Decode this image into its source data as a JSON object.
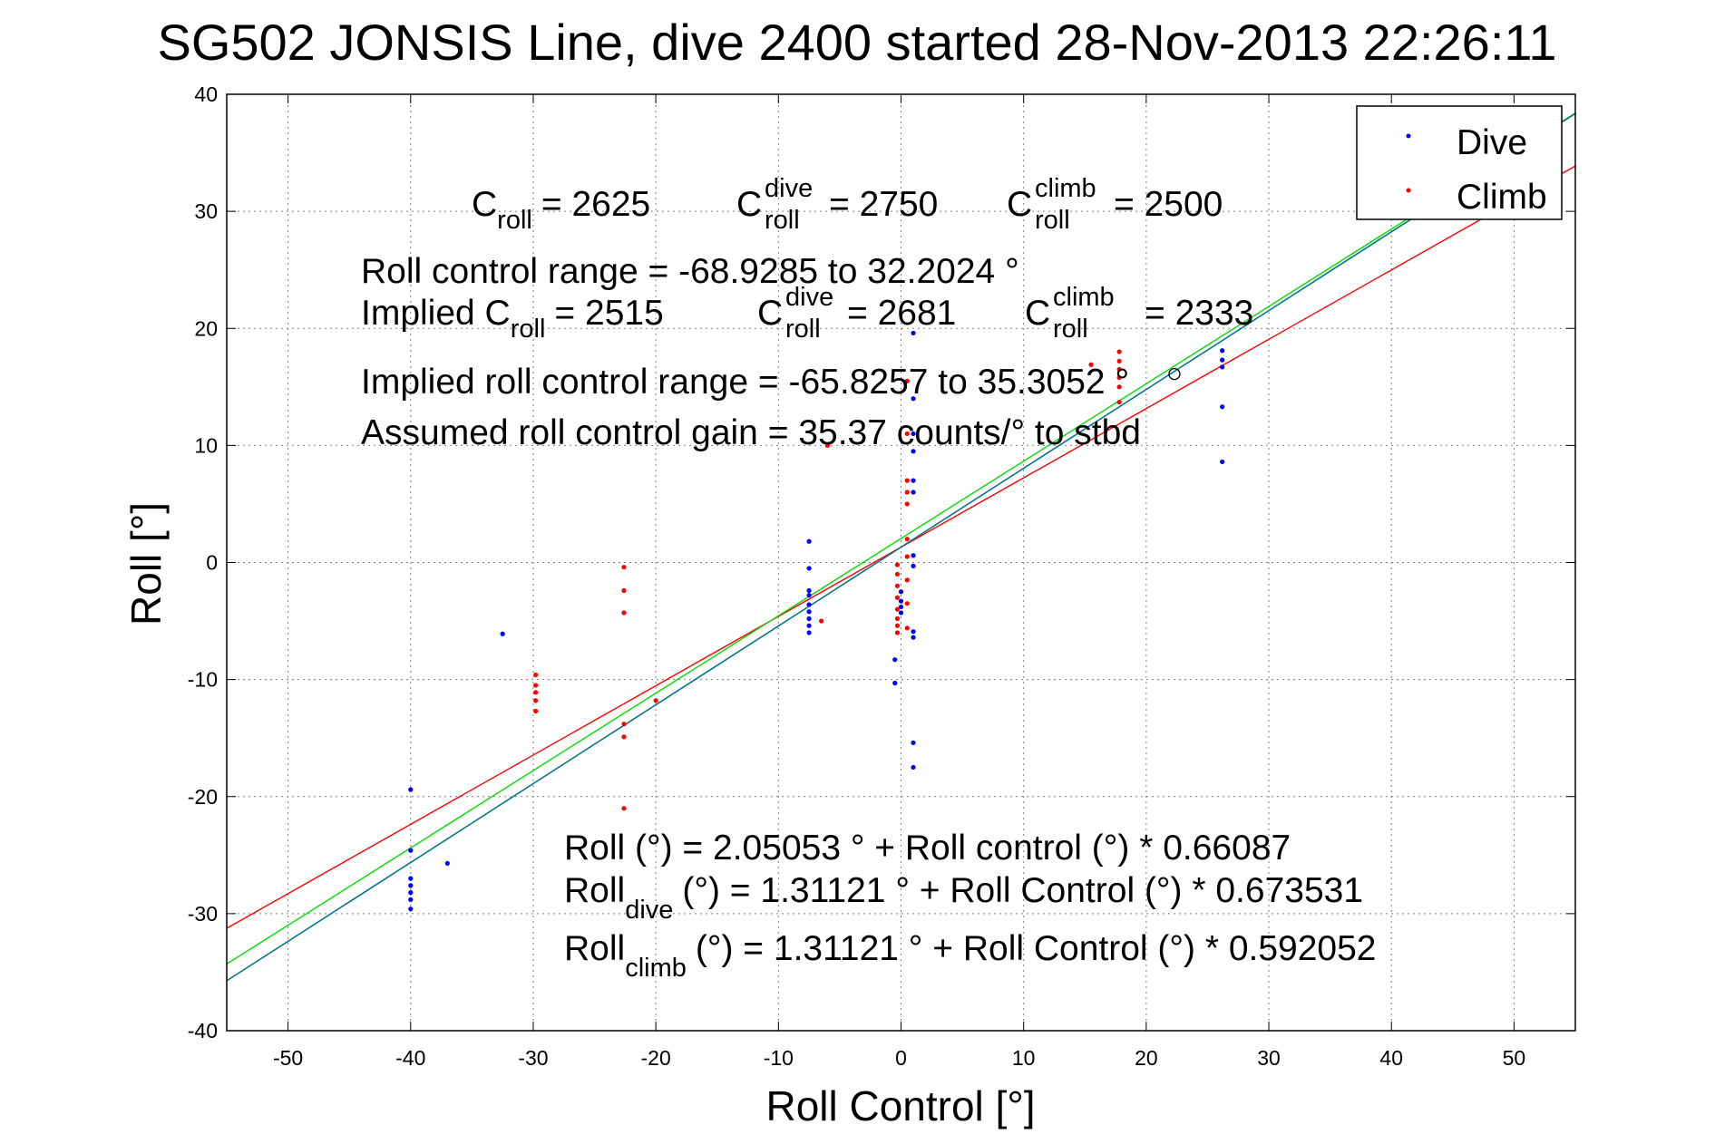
{
  "chart_data": {
    "type": "scatter",
    "title": "SG502 JONSIS Line, dive 2400 started 28-Nov-2013 22:26:11",
    "xlabel": "Roll Control [°]",
    "ylabel": "Roll [°]",
    "xlim": [
      -55,
      55
    ],
    "ylim": [
      -40,
      40
    ],
    "x_ticks": [
      "-50",
      "-40",
      "-30",
      "-20",
      "-10",
      "0",
      "10",
      "20",
      "30",
      "40",
      "50"
    ],
    "y_ticks": [
      "40",
      "30",
      "20",
      "10",
      "0",
      "-10",
      "-20",
      "-30",
      "-40"
    ],
    "grid": true,
    "legend_position": "top-right",
    "series": [
      {
        "name": "Dive",
        "color": "#0000ff",
        "points": [
          [
            -40,
            -19.4
          ],
          [
            -40,
            -24.6
          ],
          [
            -40,
            -27.0
          ],
          [
            -40,
            -27.6
          ],
          [
            -40,
            -28.2
          ],
          [
            -40,
            -28.8
          ],
          [
            -40,
            -29.6
          ],
          [
            -37,
            -25.7
          ],
          [
            -32.5,
            -6.1
          ],
          [
            -7.5,
            1.8
          ],
          [
            -7.5,
            -0.5
          ],
          [
            -7.5,
            -2.4
          ],
          [
            -7.5,
            -2.8
          ],
          [
            -7.5,
            -3.6
          ],
          [
            -7.5,
            -4.2
          ],
          [
            -7.5,
            -4.8
          ],
          [
            -7.5,
            -5.4
          ],
          [
            -7.5,
            -6.0
          ],
          [
            -0.5,
            -8.3
          ],
          [
            -0.5,
            -10.3
          ],
          [
            0,
            -2.5
          ],
          [
            0,
            -3.3
          ],
          [
            0,
            -3.8
          ],
          [
            0,
            -4.3
          ],
          [
            1,
            19.6
          ],
          [
            1,
            14.0
          ],
          [
            1,
            11.0
          ],
          [
            1,
            9.5
          ],
          [
            1,
            7.0
          ],
          [
            1,
            6.0
          ],
          [
            1,
            0.6
          ],
          [
            1,
            -0.3
          ],
          [
            1,
            -5.9
          ],
          [
            1,
            -6.4
          ],
          [
            1,
            -15.4
          ],
          [
            1,
            -17.5
          ],
          [
            26.2,
            18.1
          ],
          [
            26.2,
            17.3
          ],
          [
            26.2,
            16.7
          ],
          [
            26.2,
            13.3
          ],
          [
            26.2,
            8.6
          ]
        ]
      },
      {
        "name": "Climb",
        "color": "#ff0000",
        "points": [
          [
            -29.8,
            -9.6
          ],
          [
            -29.8,
            -10.5
          ],
          [
            -29.8,
            -11.1
          ],
          [
            -29.8,
            -11.8
          ],
          [
            -29.8,
            -12.7
          ],
          [
            -22.6,
            -0.4
          ],
          [
            -22.6,
            -2.4
          ],
          [
            -22.6,
            -4.3
          ],
          [
            -22.6,
            -13.8
          ],
          [
            -22.6,
            -14.9
          ],
          [
            -22.6,
            -21.0
          ],
          [
            -20,
            -11.8
          ],
          [
            -6.5,
            -5.0
          ],
          [
            -0.3,
            -0.2
          ],
          [
            -0.3,
            -1.0
          ],
          [
            -0.3,
            -2.0
          ],
          [
            -0.3,
            -3.0
          ],
          [
            -0.3,
            -4.0
          ],
          [
            -0.3,
            -4.8
          ],
          [
            -0.3,
            -5.4
          ],
          [
            -0.3,
            -6.0
          ],
          [
            0.5,
            15.5
          ],
          [
            0.5,
            11.0
          ],
          [
            0.5,
            7.0
          ],
          [
            0.5,
            6.0
          ],
          [
            0.5,
            5.0
          ],
          [
            0.5,
            2.0
          ],
          [
            0.5,
            0.5
          ],
          [
            0.5,
            -1.5
          ],
          [
            0.5,
            -3.5
          ],
          [
            0.5,
            -5.6
          ],
          [
            -6,
            10.0
          ],
          [
            15.5,
            16.9
          ],
          [
            17.8,
            18.0
          ],
          [
            17.8,
            17.2
          ],
          [
            17.8,
            16.5
          ],
          [
            17.8,
            15.8
          ],
          [
            17.8,
            15.0
          ],
          [
            17.8,
            13.7
          ]
        ]
      }
    ],
    "fit_lines": [
      {
        "color": "#0000ff",
        "intercept": 1.31121,
        "slope": 0.673531
      },
      {
        "color": "#ff0000",
        "intercept": 1.31121,
        "slope": 0.592052
      },
      {
        "color": "#00dd00",
        "intercept": 2.05053,
        "slope": 0.66087
      },
      {
        "color": "#008080",
        "intercept": 1.31121,
        "slope": 0.673531
      }
    ],
    "marker_circle": [
      22.3,
      16.1
    ],
    "annotations": {
      "c_roll": "C",
      "c_roll_sub": "roll",
      "c_roll_val": "= 2625",
      "c_dive": "C",
      "c_dive_sup": "dive",
      "c_dive_sub": "roll",
      "c_dive_val": "= 2750",
      "c_climb": "C",
      "c_climb_sup": "climb",
      "c_climb_sub": "roll",
      "c_climb_val": "= 2500",
      "roll_range": "Roll control range = -68.9285 to 32.2024 °",
      "implied_prefix": "Implied C",
      "implied_sub": "roll",
      "implied_val": "= 2515",
      "impl_dive": "C",
      "impl_dive_sup": "dive",
      "impl_dive_sub": "roll",
      "impl_dive_val": "= 2681",
      "impl_climb": "C",
      "impl_climb_sup": "climb",
      "impl_climb_sub": "roll",
      "impl_climb_val": "= 2333",
      "implied_range": "Implied roll control range = -65.8257 to 35.3052 °",
      "gain": "Assumed roll control gain = 35.37 counts/° to stbd",
      "fit_all": "Roll (°) = 2.05053 ° + Roll control (°) * 0.66087",
      "fit_dive_pre": "Roll",
      "fit_dive_sub": "dive",
      "fit_dive_rest": "(°) = 1.31121 ° + Roll Control (°) * 0.673531",
      "fit_climb_pre": "Roll",
      "fit_climb_sub": "climb",
      "fit_climb_rest": "(°) = 1.31121 ° + Roll Control (°) * 0.592052"
    }
  }
}
